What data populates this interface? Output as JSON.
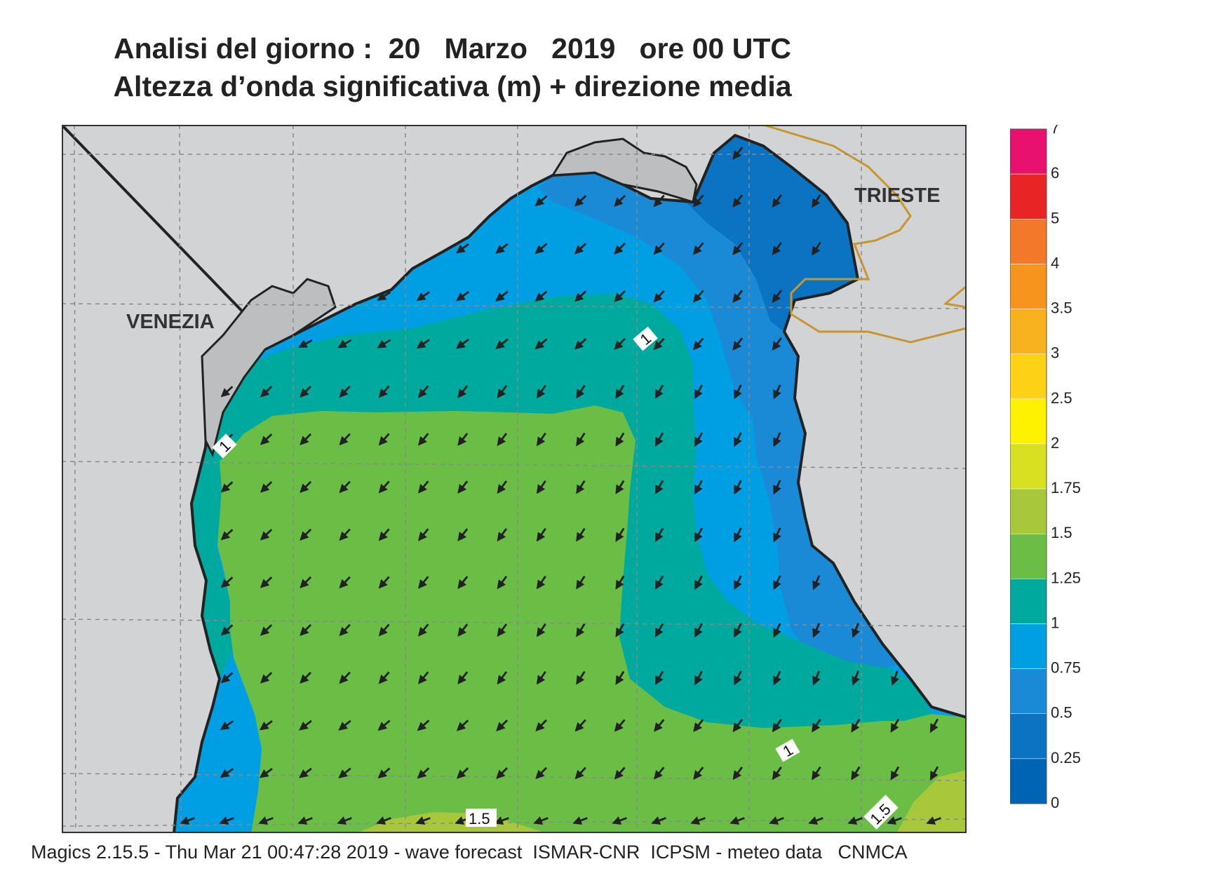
{
  "title": {
    "line1": "Analisi del giorno :  20   Marzo   2019   ore 00 UTC",
    "line2": "Altezza d’onda significativa (m) + direzione media"
  },
  "places": {
    "venezia": "VENEZIA",
    "trieste": "TRIESTE"
  },
  "contour_labels": [
    "1",
    "1",
    "1",
    "1.5",
    "1.5"
  ],
  "legend": {
    "ticks": [
      "7",
      "6",
      "5",
      "4",
      "3.5",
      "3",
      "2.5",
      "2",
      "1.75",
      "1.5",
      "1.25",
      "1",
      "0.75",
      "0.5",
      "0.25",
      "0"
    ],
    "colors": [
      "#e8116f",
      "#e82424",
      "#f2782a",
      "#f7941d",
      "#f7b21d",
      "#fcd116",
      "#fff200",
      "#d8e021",
      "#a6c83a",
      "#6abd45",
      "#00a99d",
      "#009fe3",
      "#1b8ad6",
      "#0a74c2",
      "#0064b4"
    ]
  },
  "colors": {
    "land": "#d1d3d4",
    "sea_0_25": "#0a74c2",
    "sea_0_5": "#1b8ad6",
    "sea_0_75": "#009fe3",
    "sea_1": "#00a99d",
    "sea_1_25": "#6abd45",
    "sea_1_5": "#a6c83a",
    "border": "#c8962d"
  },
  "footer": "Magics 2.15.5 - Thu Mar 21 00:47:28 2019 - wave forecast  ISMAR-CNR  ICPSM - meteo data   CNMCA"
}
